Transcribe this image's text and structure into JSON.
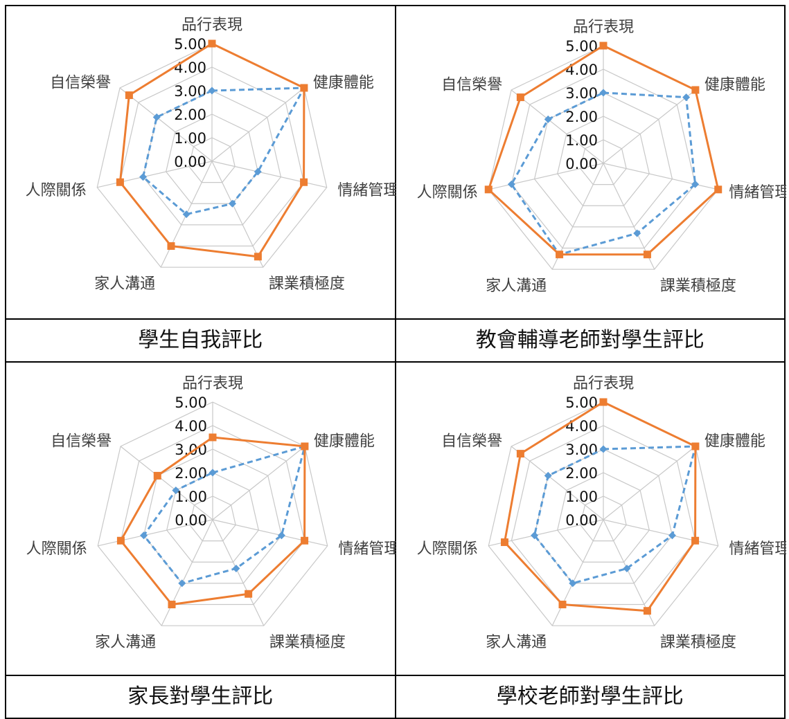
{
  "chart_data": [
    {
      "type": "radar",
      "caption": "學生自我評比",
      "categories": [
        "品行表現",
        "健康體能",
        "情緒管理",
        "課業積極度",
        "家人溝通",
        "人際關係",
        "自信榮譽"
      ],
      "tick_labels": [
        "0.00",
        "1.00",
        "2.00",
        "3.00",
        "4.00",
        "5.00"
      ],
      "rlim": [
        0,
        5
      ],
      "series": [
        {
          "color": "#ED7D31",
          "style": "solid",
          "marker": "square",
          "values": [
            5,
            5,
            4,
            4.5,
            4,
            4,
            4.5
          ]
        },
        {
          "color": "#5B9BD5",
          "style": "dashed",
          "marker": "diamond",
          "values": [
            3,
            5,
            2,
            2,
            2.5,
            3,
            3
          ]
        }
      ]
    },
    {
      "type": "radar",
      "caption": "教會輔導老師對學生評比",
      "categories": [
        "品行表現",
        "健康體能",
        "情緒管理",
        "課業積極度",
        "家人溝通",
        "人際關係",
        "自信榮譽"
      ],
      "tick_labels": [
        "0.00",
        "1.00",
        "2.00",
        "3.00",
        "4.00",
        "5.00"
      ],
      "rlim": [
        0,
        5
      ],
      "series": [
        {
          "color": "#ED7D31",
          "style": "solid",
          "marker": "square",
          "values": [
            5,
            5,
            5,
            4.3,
            4.3,
            5,
            4.5
          ]
        },
        {
          "color": "#5B9BD5",
          "style": "dashed",
          "marker": "diamond",
          "values": [
            3,
            4.5,
            4,
            3.3,
            4.3,
            4,
            3
          ]
        }
      ]
    },
    {
      "type": "radar",
      "caption": "家長對學生評比",
      "categories": [
        "品行表現",
        "健康體能",
        "情緒管理",
        "課業積極度",
        "家人溝通",
        "人際關係",
        "自信榮譽"
      ],
      "tick_labels": [
        "0.00",
        "1.00",
        "2.00",
        "3.00",
        "4.00",
        "5.00"
      ],
      "rlim": [
        0,
        5
      ],
      "series": [
        {
          "color": "#ED7D31",
          "style": "solid",
          "marker": "square",
          "values": [
            3.5,
            5,
            4,
            3.5,
            4,
            4,
            3
          ]
        },
        {
          "color": "#5B9BD5",
          "style": "dashed",
          "marker": "diamond",
          "values": [
            2,
            5,
            3,
            2.3,
            3,
            3,
            2
          ]
        }
      ]
    },
    {
      "type": "radar",
      "caption": "學校老師對學生評比",
      "categories": [
        "品行表現",
        "健康體能",
        "情緒管理",
        "課業積極度",
        "家人溝通",
        "人際關係",
        "自信榮譽"
      ],
      "tick_labels": [
        "0.00",
        "1.00",
        "2.00",
        "3.00",
        "4.00",
        "5.00"
      ],
      "rlim": [
        0,
        5
      ],
      "series": [
        {
          "color": "#ED7D31",
          "style": "solid",
          "marker": "square",
          "values": [
            5,
            5,
            4,
            4.3,
            4,
            4.3,
            4.5
          ]
        },
        {
          "color": "#5B9BD5",
          "style": "dashed",
          "marker": "diamond",
          "values": [
            3,
            5,
            3,
            2.3,
            3,
            3,
            3
          ]
        }
      ]
    }
  ]
}
